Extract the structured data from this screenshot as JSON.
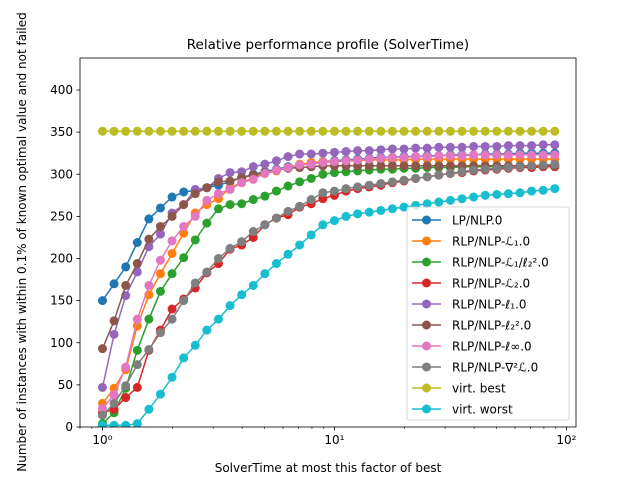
{
  "chart_data": {
    "type": "line",
    "title": "Relative performance profile (SolverTime)",
    "xlabel": "SolverTime at most this factor of best",
    "ylabel": "Number of instances with within 0.1% of known optimal value and not failed",
    "xscale": "log",
    "xlim": [
      0.8,
      110
    ],
    "ylim": [
      0,
      438
    ],
    "grid": false,
    "legend_position": "lower-right",
    "x_ticks": [
      {
        "value": 1,
        "label": "10⁰"
      },
      {
        "value": 10,
        "label": "10¹"
      },
      {
        "value": 100,
        "label": "10²"
      }
    ],
    "y_ticks": [
      0,
      50,
      100,
      150,
      200,
      250,
      300,
      350,
      400
    ],
    "x": [
      1,
      1.122,
      1.259,
      1.413,
      1.585,
      1.778,
      1.995,
      2.239,
      2.512,
      2.818,
      3.162,
      3.548,
      3.981,
      4.467,
      5.012,
      5.623,
      6.31,
      7.079,
      7.943,
      8.913,
      10,
      11.22,
      12.59,
      14.13,
      15.85,
      17.78,
      19.95,
      22.39,
      25.12,
      28.18,
      31.62,
      35.48,
      39.81,
      44.67,
      50.12,
      56.23,
      63.1,
      70.79,
      79.43,
      89.13
    ],
    "series": [
      {
        "name": "LP/NLP.0",
        "color": "#1f77b4",
        "values": [
          150,
          170,
          190,
          219,
          247,
          260,
          273,
          279,
          281,
          284,
          287,
          291,
          296,
          300,
          303,
          306,
          309,
          311,
          313,
          315,
          316,
          317,
          318,
          319,
          320,
          320,
          321,
          321,
          322,
          322,
          323,
          323,
          323,
          324,
          324,
          324,
          325,
          325,
          325,
          325
        ]
      },
      {
        "name": "RLP/NLP-ℒ₁.0",
        "color": "#ff7f0e",
        "values": [
          28,
          46,
          68,
          120,
          157,
          182,
          206,
          230,
          254,
          264,
          271,
          284,
          290,
          296,
          301,
          304,
          308,
          312,
          314,
          315,
          315,
          316,
          316,
          317,
          317,
          317,
          317,
          318,
          318,
          318,
          318,
          318,
          318,
          318,
          318,
          318,
          318,
          318,
          318,
          318
        ]
      },
      {
        "name": "RLP/NLP-ℒ₁/ℓ₂².0",
        "color": "#2ca02c",
        "values": [
          4,
          17,
          46,
          91,
          128,
          161,
          182,
          201,
          222,
          242,
          259,
          264,
          265,
          270,
          274,
          280,
          286,
          291,
          295,
          300,
          302,
          303,
          304,
          305,
          306,
          306,
          307,
          307,
          308,
          308,
          308,
          309,
          309,
          309,
          309,
          309,
          309,
          309,
          309,
          309
        ]
      },
      {
        "name": "RLP/NLP-ℒ₂.0",
        "color": "#d62728",
        "values": [
          17,
          21,
          35,
          47,
          91,
          115,
          140,
          152,
          165,
          183,
          194,
          211,
          216,
          225,
          240,
          248,
          252,
          261,
          265,
          271,
          275,
          280,
          283,
          285,
          287,
          290,
          292,
          295,
          297,
          299,
          301,
          302,
          304,
          305,
          306,
          307,
          308,
          308,
          309,
          309
        ]
      },
      {
        "name": "RLP/NLP-ℓ₁.0",
        "color": "#9467bd",
        "values": [
          47,
          110,
          156,
          184,
          214,
          229,
          254,
          264,
          282,
          284,
          295,
          302,
          303,
          309,
          312,
          316,
          321,
          324,
          324,
          325,
          326,
          327,
          328,
          328,
          329,
          330,
          330,
          331,
          331,
          332,
          332,
          332,
          333,
          333,
          333,
          334,
          334,
          334,
          335,
          335
        ]
      },
      {
        "name": "RLP/NLP-ℓ₂².0",
        "color": "#8c564b",
        "values": [
          93,
          126,
          168,
          194,
          223,
          238,
          250,
          264,
          277,
          284,
          291,
          292,
          296,
          299,
          302,
          305,
          307,
          308,
          309,
          310,
          310,
          310,
          310,
          310,
          310,
          310,
          310,
          310,
          310,
          310,
          310,
          310,
          310,
          310,
          310,
          310,
          310,
          310,
          310,
          310
        ]
      },
      {
        "name": "RLP/NLP-ℓ∞.0",
        "color": "#e377c2",
        "values": [
          22,
          38,
          71,
          128,
          168,
          198,
          221,
          238,
          250,
          269,
          277,
          282,
          290,
          294,
          301,
          305,
          308,
          311,
          312,
          314,
          315,
          316,
          317,
          318,
          319,
          320,
          320,
          321,
          321,
          322,
          322,
          322,
          323,
          323,
          323,
          323,
          323,
          323,
          323,
          323
        ]
      },
      {
        "name": "RLP/NLP-∇²ℒ.0",
        "color": "#7f7f7f",
        "values": [
          14,
          28,
          49,
          74,
          92,
          112,
          128,
          150,
          171,
          184,
          200,
          212,
          220,
          232,
          240,
          248,
          256,
          262,
          270,
          278,
          280,
          283,
          285,
          287,
          289,
          291,
          293,
          295,
          297,
          299,
          301,
          303,
          305,
          306,
          307,
          308,
          309,
          310,
          311,
          312
        ]
      },
      {
        "name": "virt. best",
        "color": "#bcbd22",
        "values": [
          351,
          351,
          351,
          351,
          351,
          351,
          351,
          351,
          351,
          351,
          351,
          351,
          351,
          351,
          351,
          351,
          351,
          351,
          351,
          351,
          351,
          351,
          351,
          351,
          351,
          351,
          351,
          351,
          351,
          351,
          351,
          351,
          351,
          351,
          351,
          351,
          351,
          351,
          351,
          351
        ]
      },
      {
        "name": "virt. worst",
        "color": "#17becf",
        "values": [
          2,
          2,
          2,
          4,
          21,
          39,
          59,
          82,
          97,
          115,
          128,
          144,
          157,
          168,
          182,
          194,
          205,
          216,
          228,
          240,
          245,
          250,
          253,
          255,
          257,
          259,
          261,
          263,
          265,
          267,
          269,
          271,
          273,
          275,
          276,
          277,
          278,
          280,
          281,
          283
        ]
      }
    ]
  }
}
